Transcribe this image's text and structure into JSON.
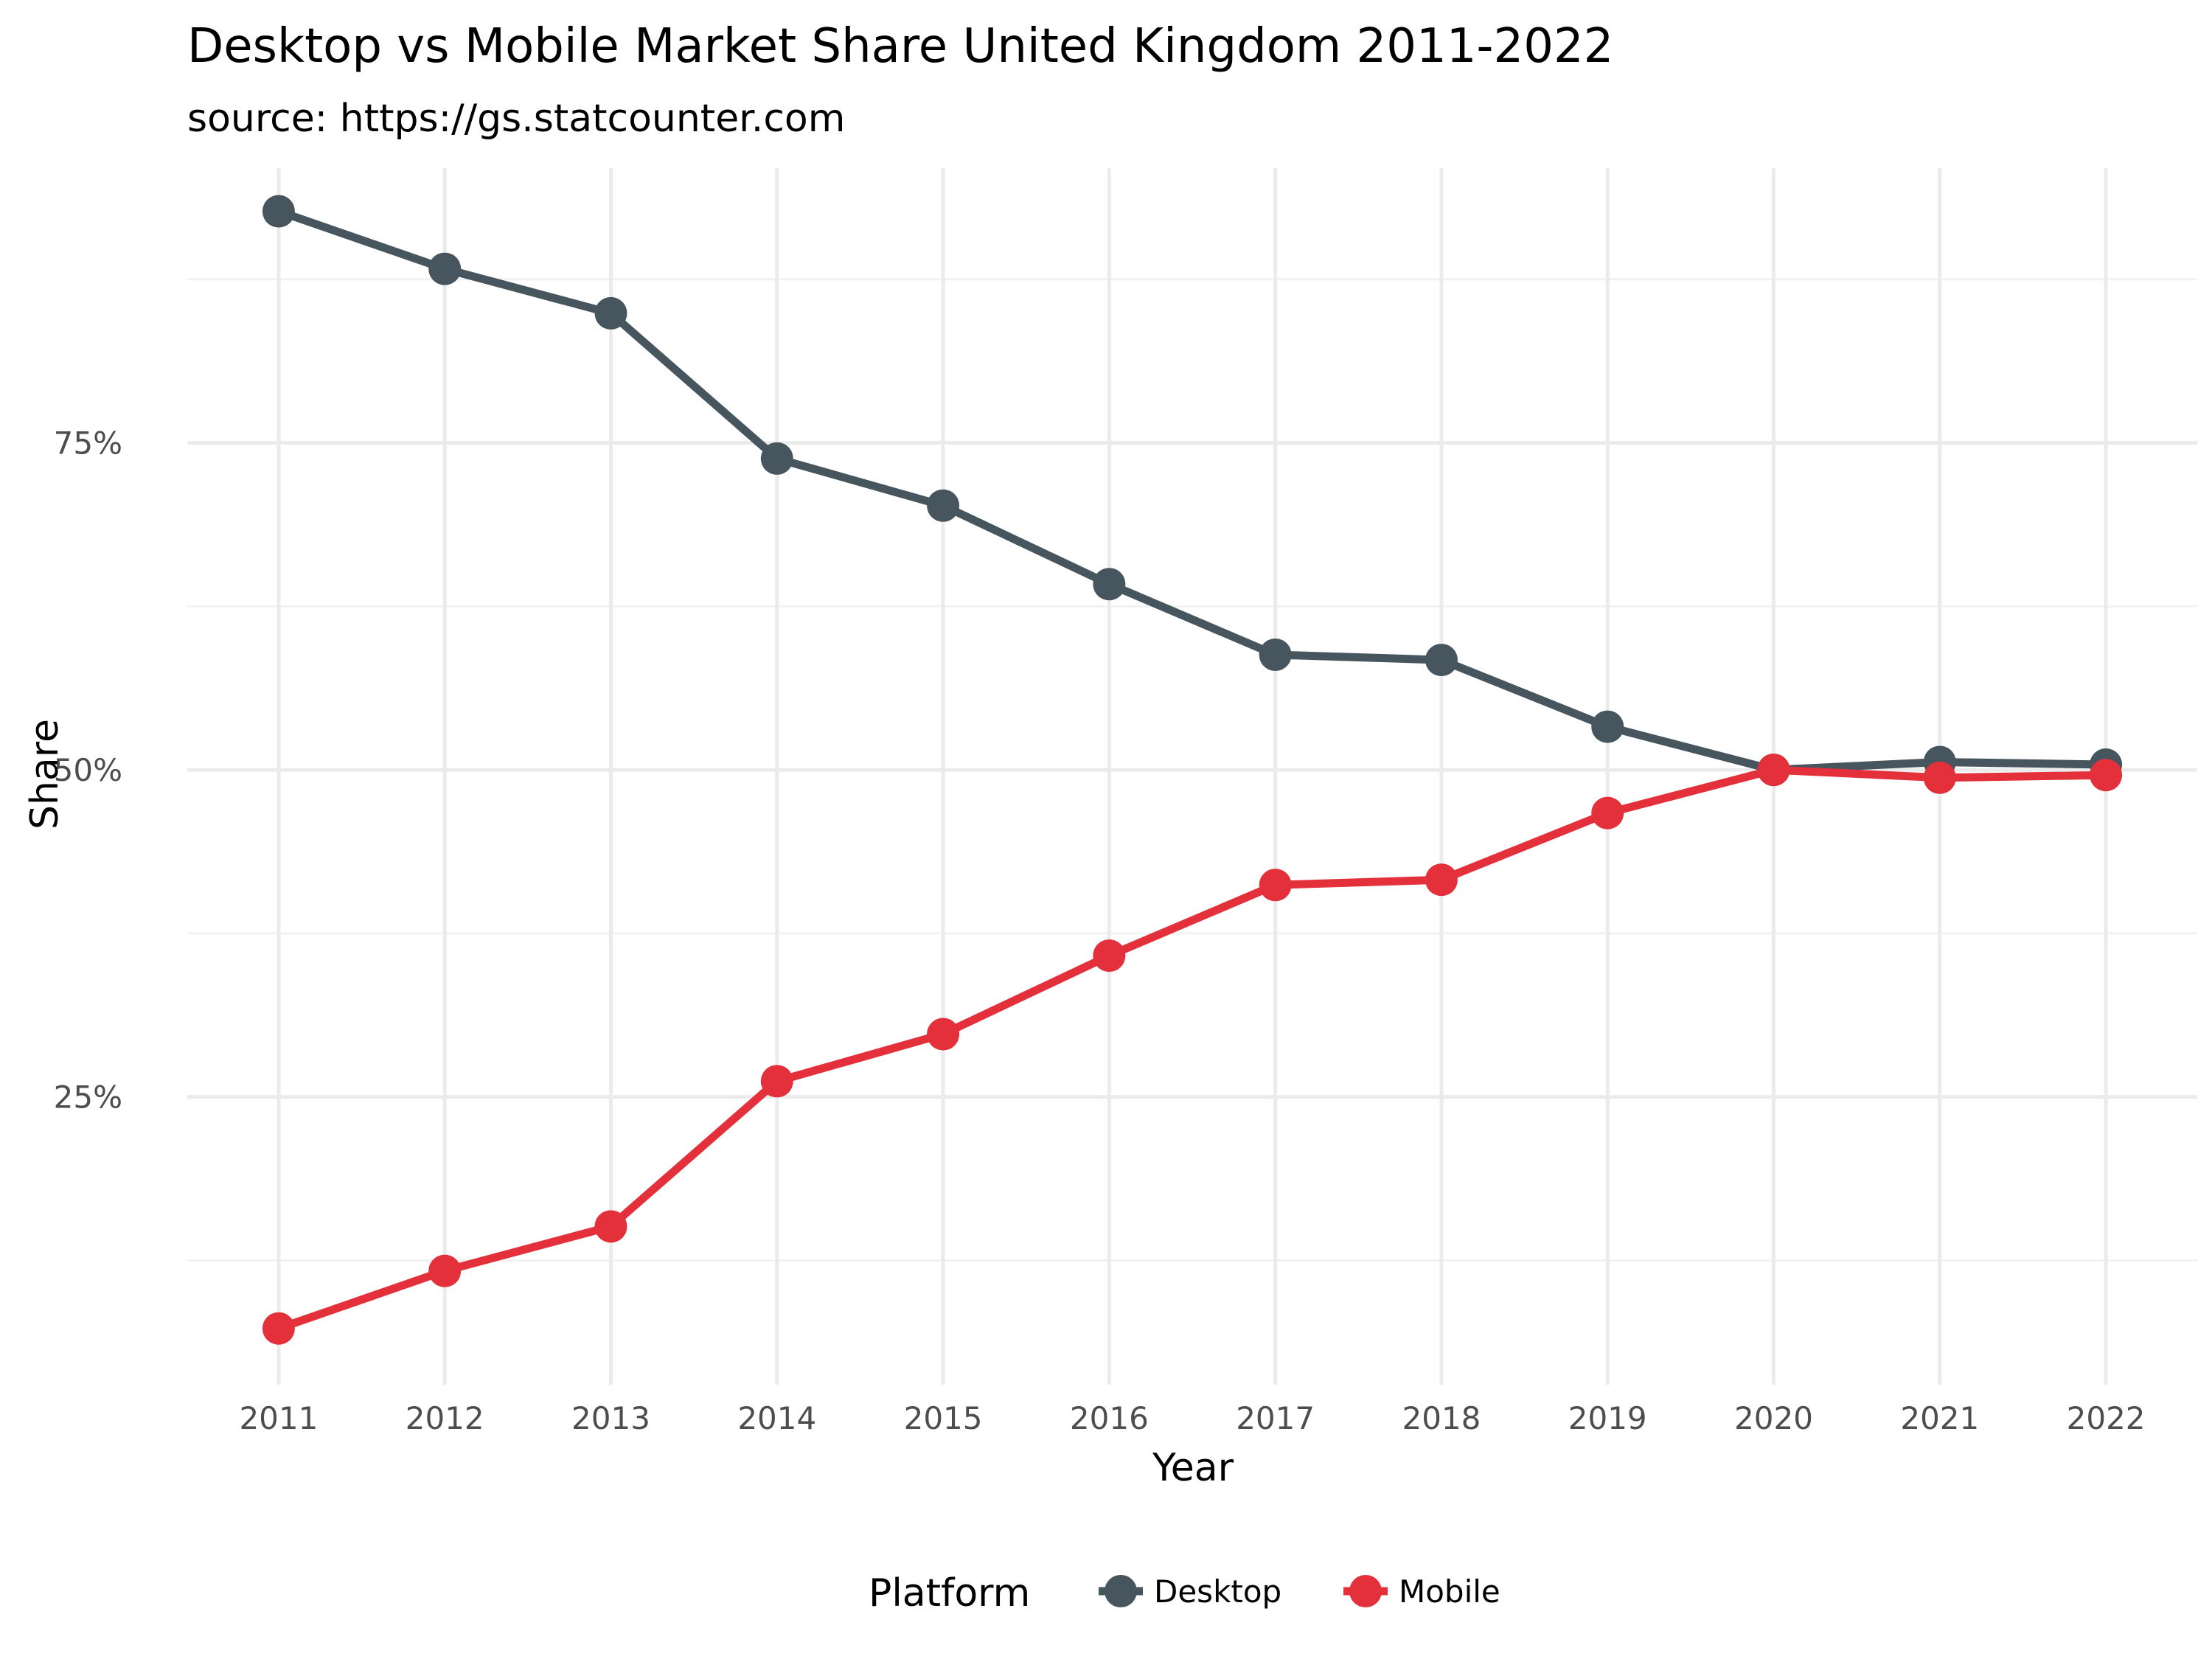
{
  "chart_data": {
    "type": "line",
    "title": "Desktop vs Mobile Market Share United Kingdom 2011-2022",
    "subtitle": "source: https://gs.statcounter.com",
    "xlabel": "Year",
    "ylabel": "Share",
    "x": [
      2011,
      2012,
      2013,
      2014,
      2015,
      2016,
      2017,
      2018,
      2019,
      2020,
      2021,
      2022
    ],
    "y_ticks": [
      25,
      50,
      75
    ],
    "y_tick_labels": [
      "25%",
      "50%",
      "75%"
    ],
    "ylim": [
      3,
      96
    ],
    "grid": true,
    "legend": {
      "title": "Platform",
      "placement": "bottom"
    },
    "series": [
      {
        "name": "Desktop",
        "color": "#47555e",
        "values": [
          92.7,
          88.3,
          84.9,
          73.8,
          70.2,
          64.2,
          58.8,
          58.4,
          53.3,
          50.0,
          50.6,
          50.4
        ]
      },
      {
        "name": "Mobile",
        "color": "#e3303a",
        "values": [
          7.3,
          11.7,
          15.1,
          26.2,
          29.8,
          35.8,
          41.2,
          41.6,
          46.7,
          50.0,
          49.4,
          49.6
        ]
      }
    ]
  }
}
